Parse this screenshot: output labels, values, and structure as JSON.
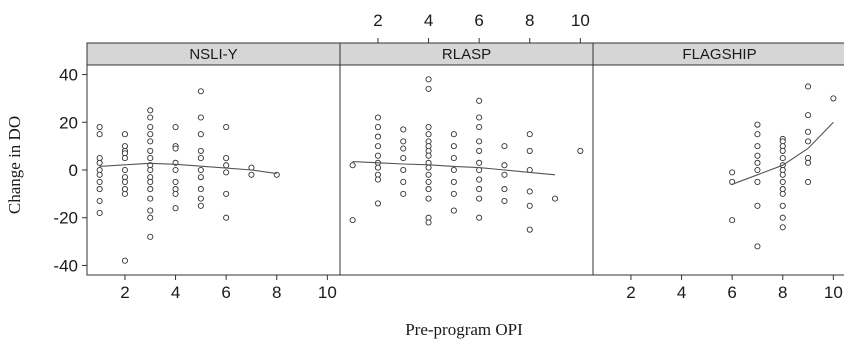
{
  "chart_data": {
    "type": "scatter",
    "xlabel": "Pre-program OPI",
    "ylabel": "Change in DO",
    "xlim": [
      0.5,
      10.5
    ],
    "ylim": [
      -44,
      44
    ],
    "x_ticks": [
      2,
      4,
      6,
      8,
      10
    ],
    "y_ticks": [
      -40,
      -20,
      0,
      20,
      40
    ],
    "x_tick_labels": [
      "2",
      "4",
      "6",
      "8",
      "10"
    ],
    "y_tick_labels": [
      "-40",
      "-20",
      "0",
      "20",
      "40"
    ],
    "grid": false,
    "panels": [
      {
        "name": "NSLI-Y",
        "bottom_axis": true,
        "top_axis": false,
        "points": [
          [
            1,
            18
          ],
          [
            1,
            15
          ],
          [
            1,
            5
          ],
          [
            1,
            3
          ],
          [
            1,
            0
          ],
          [
            1,
            -2
          ],
          [
            1,
            -5
          ],
          [
            1,
            -8
          ],
          [
            1,
            -13
          ],
          [
            1,
            -18
          ],
          [
            2,
            15
          ],
          [
            2,
            10
          ],
          [
            2,
            8
          ],
          [
            2,
            7
          ],
          [
            2,
            5
          ],
          [
            2,
            0
          ],
          [
            2,
            -3
          ],
          [
            2,
            -5
          ],
          [
            2,
            -8
          ],
          [
            2,
            -10
          ],
          [
            2,
            -38
          ],
          [
            3,
            25
          ],
          [
            3,
            22
          ],
          [
            3,
            18
          ],
          [
            3,
            15
          ],
          [
            3,
            12
          ],
          [
            3,
            8
          ],
          [
            3,
            5
          ],
          [
            3,
            2
          ],
          [
            3,
            0
          ],
          [
            3,
            -3
          ],
          [
            3,
            -5
          ],
          [
            3,
            -8
          ],
          [
            3,
            -12
          ],
          [
            3,
            -17
          ],
          [
            3,
            -20
          ],
          [
            3,
            -28
          ],
          [
            4,
            18
          ],
          [
            4,
            10
          ],
          [
            4,
            9
          ],
          [
            4,
            3
          ],
          [
            4,
            0
          ],
          [
            4,
            -5
          ],
          [
            4,
            -8
          ],
          [
            4,
            -10
          ],
          [
            4,
            -16
          ],
          [
            5,
            33
          ],
          [
            5,
            22
          ],
          [
            5,
            15
          ],
          [
            5,
            8
          ],
          [
            5,
            5
          ],
          [
            5,
            0
          ],
          [
            5,
            -3
          ],
          [
            5,
            -8
          ],
          [
            5,
            -12
          ],
          [
            5,
            -15
          ],
          [
            6,
            18
          ],
          [
            6,
            5
          ],
          [
            6,
            2
          ],
          [
            6,
            -1
          ],
          [
            6,
            -10
          ],
          [
            6,
            -20
          ],
          [
            7,
            1
          ],
          [
            7,
            -2
          ],
          [
            8,
            -2
          ]
        ],
        "loess": [
          [
            1,
            1.5
          ],
          [
            2,
            2.2
          ],
          [
            3,
            2.8
          ],
          [
            4,
            2.4
          ],
          [
            5,
            1.6
          ],
          [
            6,
            0.8
          ],
          [
            7,
            0
          ],
          [
            8,
            -1.5
          ]
        ]
      },
      {
        "name": "RLASP",
        "bottom_axis": false,
        "top_axis": true,
        "points": [
          [
            1,
            2
          ],
          [
            1,
            -21
          ],
          [
            2,
            22
          ],
          [
            2,
            18
          ],
          [
            2,
            14
          ],
          [
            2,
            10
          ],
          [
            2,
            6
          ],
          [
            2,
            3
          ],
          [
            2,
            1
          ],
          [
            2,
            -2
          ],
          [
            2,
            -4
          ],
          [
            2,
            -14
          ],
          [
            3,
            17
          ],
          [
            3,
            12
          ],
          [
            3,
            9
          ],
          [
            3,
            5
          ],
          [
            3,
            0
          ],
          [
            3,
            -5
          ],
          [
            3,
            -10
          ],
          [
            4,
            38
          ],
          [
            4,
            34
          ],
          [
            4,
            18
          ],
          [
            4,
            15
          ],
          [
            4,
            12
          ],
          [
            4,
            10
          ],
          [
            4,
            8
          ],
          [
            4,
            6
          ],
          [
            4,
            3
          ],
          [
            4,
            1
          ],
          [
            4,
            -2
          ],
          [
            4,
            -5
          ],
          [
            4,
            -8
          ],
          [
            4,
            -12
          ],
          [
            4,
            -20
          ],
          [
            4,
            -22
          ],
          [
            5,
            15
          ],
          [
            5,
            10
          ],
          [
            5,
            5
          ],
          [
            5,
            0
          ],
          [
            5,
            -5
          ],
          [
            5,
            -10
          ],
          [
            5,
            -17
          ],
          [
            6,
            29
          ],
          [
            6,
            22
          ],
          [
            6,
            18
          ],
          [
            6,
            12
          ],
          [
            6,
            8
          ],
          [
            6,
            3
          ],
          [
            6,
            0
          ],
          [
            6,
            -4
          ],
          [
            6,
            -8
          ],
          [
            6,
            -12
          ],
          [
            6,
            -20
          ],
          [
            7,
            10
          ],
          [
            7,
            2
          ],
          [
            7,
            -2
          ],
          [
            7,
            -8
          ],
          [
            7,
            -13
          ],
          [
            8,
            15
          ],
          [
            8,
            8
          ],
          [
            8,
            0
          ],
          [
            8,
            -9
          ],
          [
            8,
            -15
          ],
          [
            8,
            -25
          ],
          [
            9,
            -12
          ],
          [
            10,
            8
          ]
        ],
        "loess": [
          [
            1,
            3.5
          ],
          [
            2,
            3
          ],
          [
            3,
            2.5
          ],
          [
            4,
            2.2
          ],
          [
            5,
            1.5
          ],
          [
            6,
            1
          ],
          [
            7,
            0
          ],
          [
            8,
            -1
          ],
          [
            9,
            -2
          ]
        ]
      },
      {
        "name": "FLAGSHIP",
        "bottom_axis": true,
        "top_axis": false,
        "points": [
          [
            6,
            -1
          ],
          [
            6,
            -5
          ],
          [
            6,
            -21
          ],
          [
            7,
            19
          ],
          [
            7,
            15
          ],
          [
            7,
            10
          ],
          [
            7,
            6
          ],
          [
            7,
            3
          ],
          [
            7,
            0
          ],
          [
            7,
            -5
          ],
          [
            7,
            -15
          ],
          [
            7,
            -32
          ],
          [
            8,
            13
          ],
          [
            8,
            12
          ],
          [
            8,
            10
          ],
          [
            8,
            8
          ],
          [
            8,
            5
          ],
          [
            8,
            2
          ],
          [
            8,
            0
          ],
          [
            8,
            -2
          ],
          [
            8,
            -5
          ],
          [
            8,
            -8
          ],
          [
            8,
            -10
          ],
          [
            8,
            -15
          ],
          [
            8,
            -20
          ],
          [
            8,
            -24
          ],
          [
            9,
            35
          ],
          [
            9,
            23
          ],
          [
            9,
            16
          ],
          [
            9,
            12
          ],
          [
            9,
            5
          ],
          [
            9,
            3
          ],
          [
            9,
            -5
          ],
          [
            10,
            30
          ]
        ],
        "loess": [
          [
            6,
            -6
          ],
          [
            7,
            -2
          ],
          [
            8,
            2
          ],
          [
            9,
            9
          ],
          [
            10,
            20
          ]
        ]
      }
    ]
  }
}
